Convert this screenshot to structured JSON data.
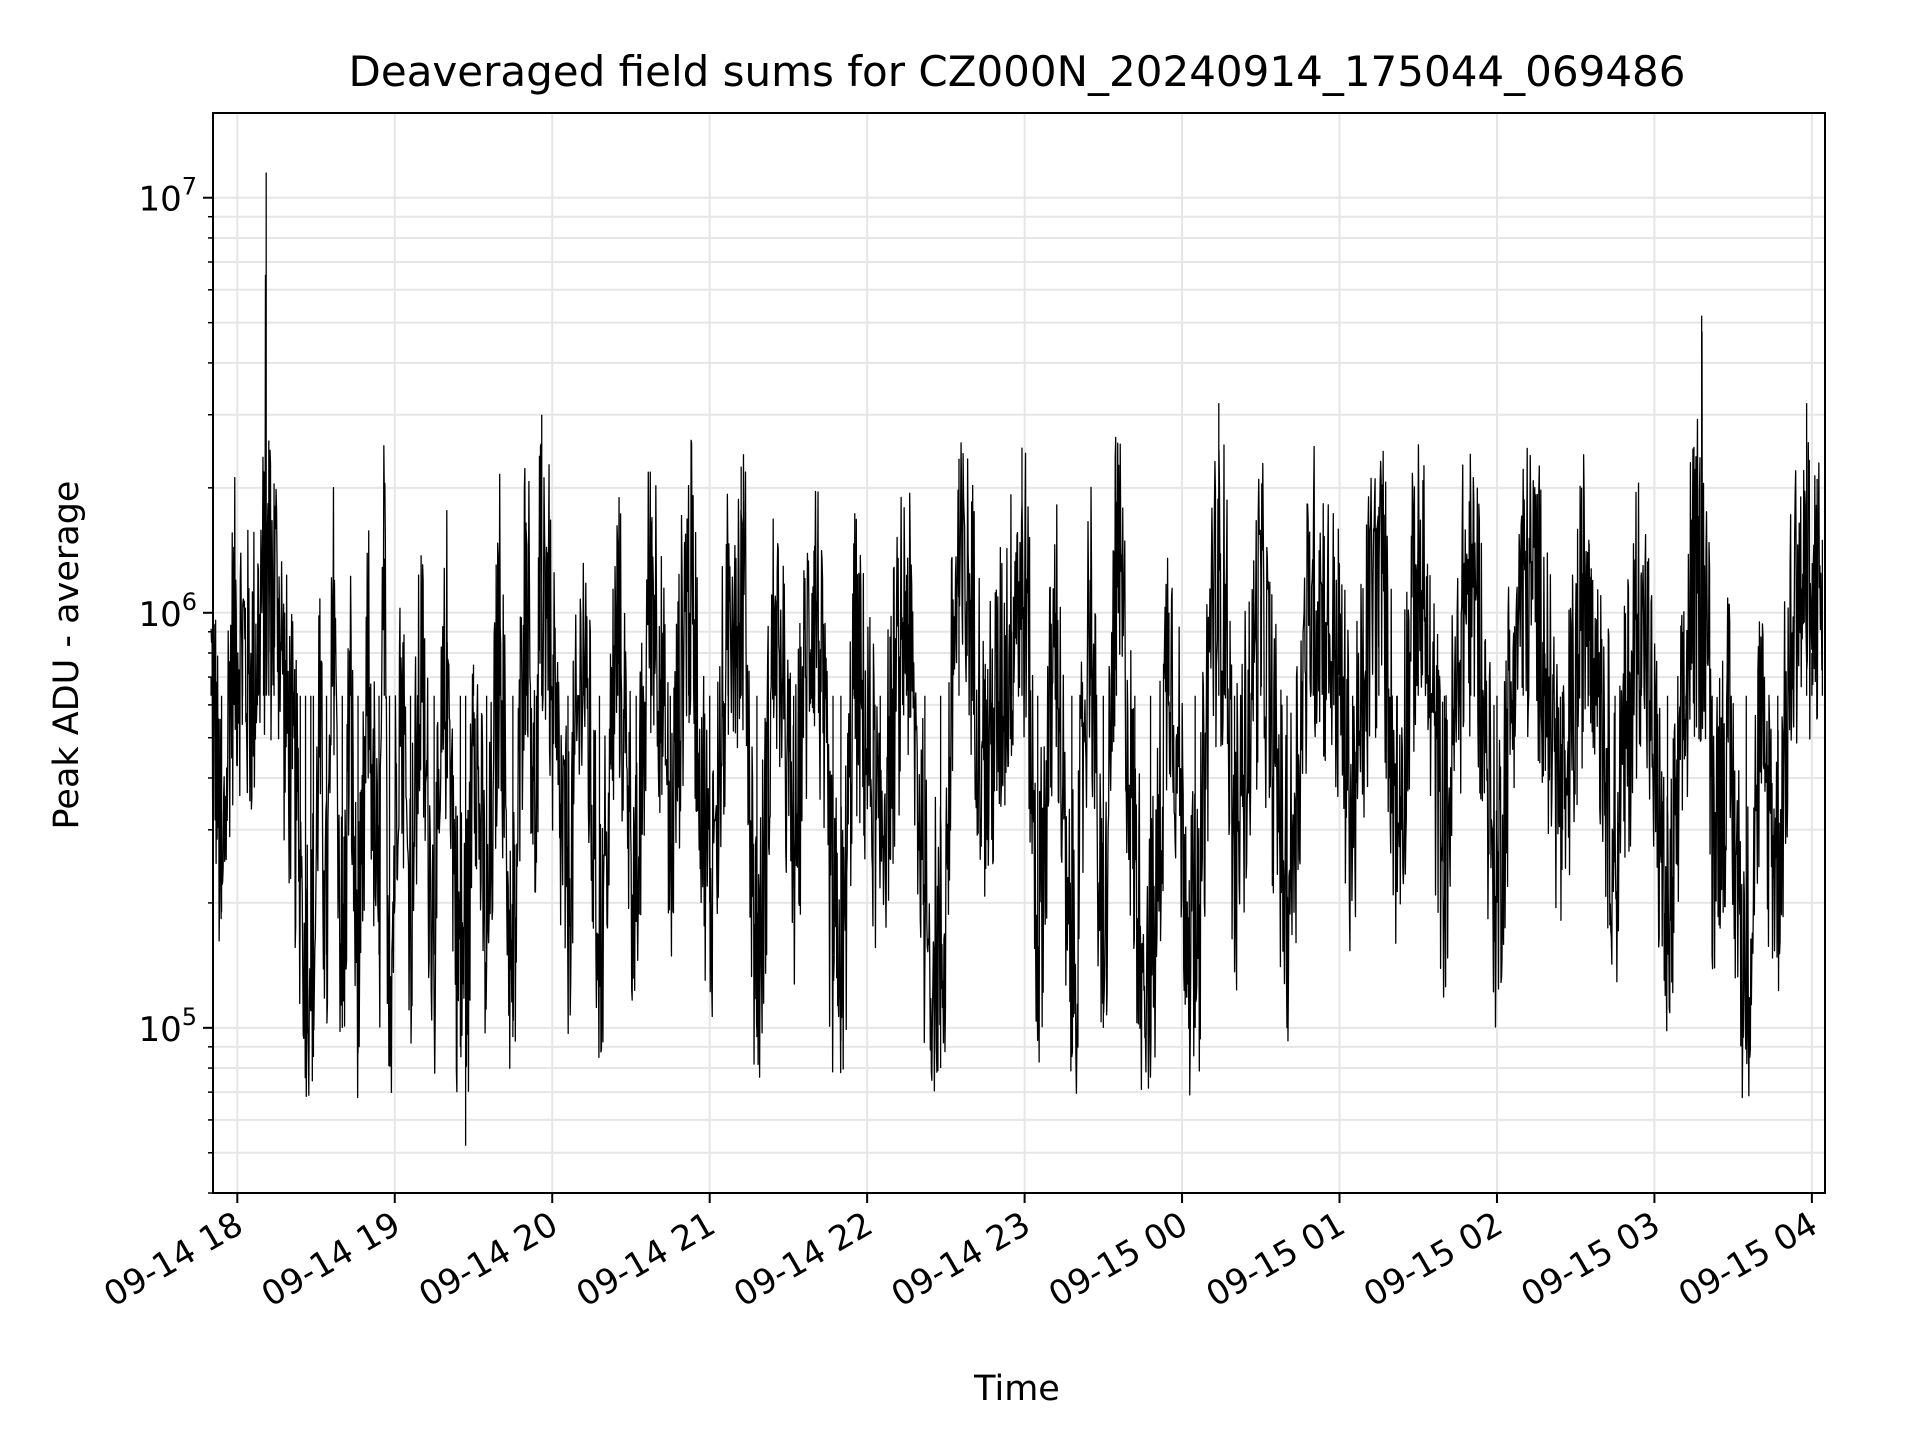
{
  "chart_data": {
    "type": "line",
    "title": "Deaveraged field sums for CZ000N_20240914_175044_069486",
    "xlabel": "Time",
    "ylabel": "Peak ADU - average",
    "x_range": [
      "2024-09-14 17:50:44",
      "2024-09-15 04:05:00"
    ],
    "y_scale": "log",
    "ylim": [
      40000,
      16000000
    ],
    "grid": true,
    "x_ticks": [
      {
        "value": "2024-09-14 18:00",
        "label": "09-14 18"
      },
      {
        "value": "2024-09-14 19:00",
        "label": "09-14 19"
      },
      {
        "value": "2024-09-14 20:00",
        "label": "09-14 20"
      },
      {
        "value": "2024-09-14 21:00",
        "label": "09-14 21"
      },
      {
        "value": "2024-09-14 22:00",
        "label": "09-14 22"
      },
      {
        "value": "2024-09-14 23:00",
        "label": "09-14 23"
      },
      {
        "value": "2024-09-15 00:00",
        "label": "09-15 00"
      },
      {
        "value": "2024-09-15 01:00",
        "label": "09-15 01"
      },
      {
        "value": "2024-09-15 02:00",
        "label": "09-15 02"
      },
      {
        "value": "2024-09-15 03:00",
        "label": "09-15 03"
      },
      {
        "value": "2024-09-15 04:00",
        "label": "09-15 04"
      }
    ],
    "y_ticks": [
      {
        "value": 100000,
        "base": "10",
        "exp": "5"
      },
      {
        "value": 1000000,
        "base": "10",
        "exp": "6"
      },
      {
        "value": 10000000,
        "base": "10",
        "exp": "7"
      }
    ],
    "series": [
      {
        "color": "#000000",
        "points": [
          [
            "2024-09-14 17:50",
            700000
          ],
          [
            "2024-09-14 17:52",
            480000
          ],
          [
            "2024-09-14 17:54",
            190000
          ],
          [
            "2024-09-14 17:57",
            650000
          ],
          [
            "2024-09-14 17:59",
            900000
          ],
          [
            "2024-09-14 18:02",
            820000
          ],
          [
            "2024-09-14 18:05",
            650000
          ],
          [
            "2024-09-14 18:08",
            900000
          ],
          [
            "2024-09-14 18:10",
            1400000
          ],
          [
            "2024-09-14 18:11",
            11500000
          ],
          [
            "2024-09-14 18:12",
            2600000
          ],
          [
            "2024-09-14 18:14",
            2050000
          ],
          [
            "2024-09-14 18:16",
            950000
          ],
          [
            "2024-09-14 18:18",
            600000
          ],
          [
            "2024-09-14 18:21",
            420000
          ],
          [
            "2024-09-14 18:24",
            250000
          ],
          [
            "2024-09-14 18:26",
            160000
          ],
          [
            "2024-09-14 18:28",
            110000
          ],
          [
            "2024-09-14 18:29",
            85000
          ],
          [
            "2024-09-14 18:31",
            600000
          ],
          [
            "2024-09-14 18:34",
            150000
          ],
          [
            "2024-09-14 18:37",
            1200000
          ],
          [
            "2024-09-14 18:40",
            100000
          ],
          [
            "2024-09-14 18:43",
            700000
          ],
          [
            "2024-09-14 18:46",
            87000
          ],
          [
            "2024-09-14 18:50",
            800000
          ],
          [
            "2024-09-14 18:54",
            150000
          ],
          [
            "2024-09-14 18:56",
            1350000
          ],
          [
            "2024-09-14 18:58",
            88000
          ],
          [
            "2024-09-14 19:02",
            900000
          ],
          [
            "2024-09-14 19:06",
            180000
          ],
          [
            "2024-09-14 19:10",
            750000
          ],
          [
            "2024-09-14 19:15",
            150000
          ],
          [
            "2024-09-14 19:20",
            850000
          ],
          [
            "2024-09-14 19:25",
            90000
          ],
          [
            "2024-09-14 19:27",
            52000
          ],
          [
            "2024-09-14 19:30",
            750000
          ],
          [
            "2024-09-14 19:35",
            140000
          ],
          [
            "2024-09-14 19:40",
            1000000
          ],
          [
            "2024-09-14 19:45",
            95000
          ],
          [
            "2024-09-14 19:50",
            1650000
          ],
          [
            "2024-09-14 19:54",
            250000
          ],
          [
            "2024-09-14 19:56",
            3000000
          ],
          [
            "2024-09-14 20:00",
            600000
          ],
          [
            "2024-09-14 20:06",
            200000
          ],
          [
            "2024-09-14 20:12",
            900000
          ],
          [
            "2024-09-14 20:18",
            140000
          ],
          [
            "2024-09-14 20:25",
            1000000
          ],
          [
            "2024-09-14 20:32",
            180000
          ],
          [
            "2024-09-14 20:38",
            1700000
          ],
          [
            "2024-09-14 20:45",
            260000
          ],
          [
            "2024-09-14 20:52",
            1500000
          ],
          [
            "2024-09-14 21:00",
            200000
          ],
          [
            "2024-09-14 21:07",
            900000
          ],
          [
            "2024-09-14 21:12",
            2250000
          ],
          [
            "2024-09-14 21:18",
            95000
          ],
          [
            "2024-09-14 21:25",
            1100000
          ],
          [
            "2024-09-14 21:32",
            250000
          ],
          [
            "2024-09-14 21:40",
            1450000
          ],
          [
            "2024-09-14 21:47",
            150000
          ],
          [
            "2024-09-14 21:50",
            93000
          ],
          [
            "2024-09-14 21:55",
            800000
          ],
          [
            "2024-09-14 22:05",
            300000
          ],
          [
            "2024-09-14 22:15",
            1100000
          ],
          [
            "2024-09-14 22:22",
            200000
          ],
          [
            "2024-09-14 22:28",
            80000
          ],
          [
            "2024-09-14 22:35",
            2350000
          ],
          [
            "2024-09-14 22:45",
            400000
          ],
          [
            "2024-09-14 22:55",
            900000
          ],
          [
            "2024-09-14 22:59",
            2500000
          ],
          [
            "2024-09-14 23:05",
            150000
          ],
          [
            "2024-09-14 23:12",
            1000000
          ],
          [
            "2024-09-14 23:18",
            85000
          ],
          [
            "2024-09-14 23:25",
            1200000
          ],
          [
            "2024-09-14 23:30",
            100000
          ],
          [
            "2024-09-14 23:35",
            1850000
          ],
          [
            "2024-09-14 23:42",
            250000
          ],
          [
            "2024-09-14 23:48",
            92000
          ],
          [
            "2024-09-14 23:55",
            1000000
          ],
          [
            "2024-09-15 00:05",
            100000
          ],
          [
            "2024-09-15 00:14",
            3200000
          ],
          [
            "2024-09-15 00:20",
            250000
          ],
          [
            "2024-09-15 00:30",
            1100000
          ],
          [
            "2024-09-15 00:40",
            200000
          ],
          [
            "2024-09-15 00:50",
            1300000
          ],
          [
            "2024-09-15 01:00",
            700000
          ],
          [
            "2024-09-15 01:05",
            300000
          ],
          [
            "2024-09-15 01:15",
            1800000
          ],
          [
            "2024-09-15 01:22",
            300000
          ],
          [
            "2024-09-15 01:30",
            1450000
          ],
          [
            "2024-09-15 01:40",
            250000
          ],
          [
            "2024-09-15 01:50",
            1800000
          ],
          [
            "2024-09-15 02:00",
            200000
          ],
          [
            "2024-09-15 02:10",
            1950000
          ],
          [
            "2024-09-15 02:18",
            800000
          ],
          [
            "2024-09-15 02:25",
            300000
          ],
          [
            "2024-09-15 02:35",
            1500000
          ],
          [
            "2024-09-15 02:45",
            250000
          ],
          [
            "2024-09-15 02:55",
            1250000
          ],
          [
            "2024-09-15 03:05",
            150000
          ],
          [
            "2024-09-15 03:12",
            600000
          ],
          [
            "2024-09-15 03:18",
            5200000
          ],
          [
            "2024-09-15 03:22",
            300000
          ],
          [
            "2024-09-15 03:28",
            500000
          ],
          [
            "2024-09-15 03:35",
            110000
          ],
          [
            "2024-09-15 03:40",
            500000
          ],
          [
            "2024-09-15 03:47",
            250000
          ],
          [
            "2024-09-15 03:52",
            800000
          ],
          [
            "2024-09-15 03:58",
            3200000
          ],
          [
            "2024-09-15 04:00",
            800000
          ],
          [
            "2024-09-15 04:02",
            2100000
          ],
          [
            "2024-09-15 04:04",
            1500000
          ]
        ]
      }
    ]
  }
}
